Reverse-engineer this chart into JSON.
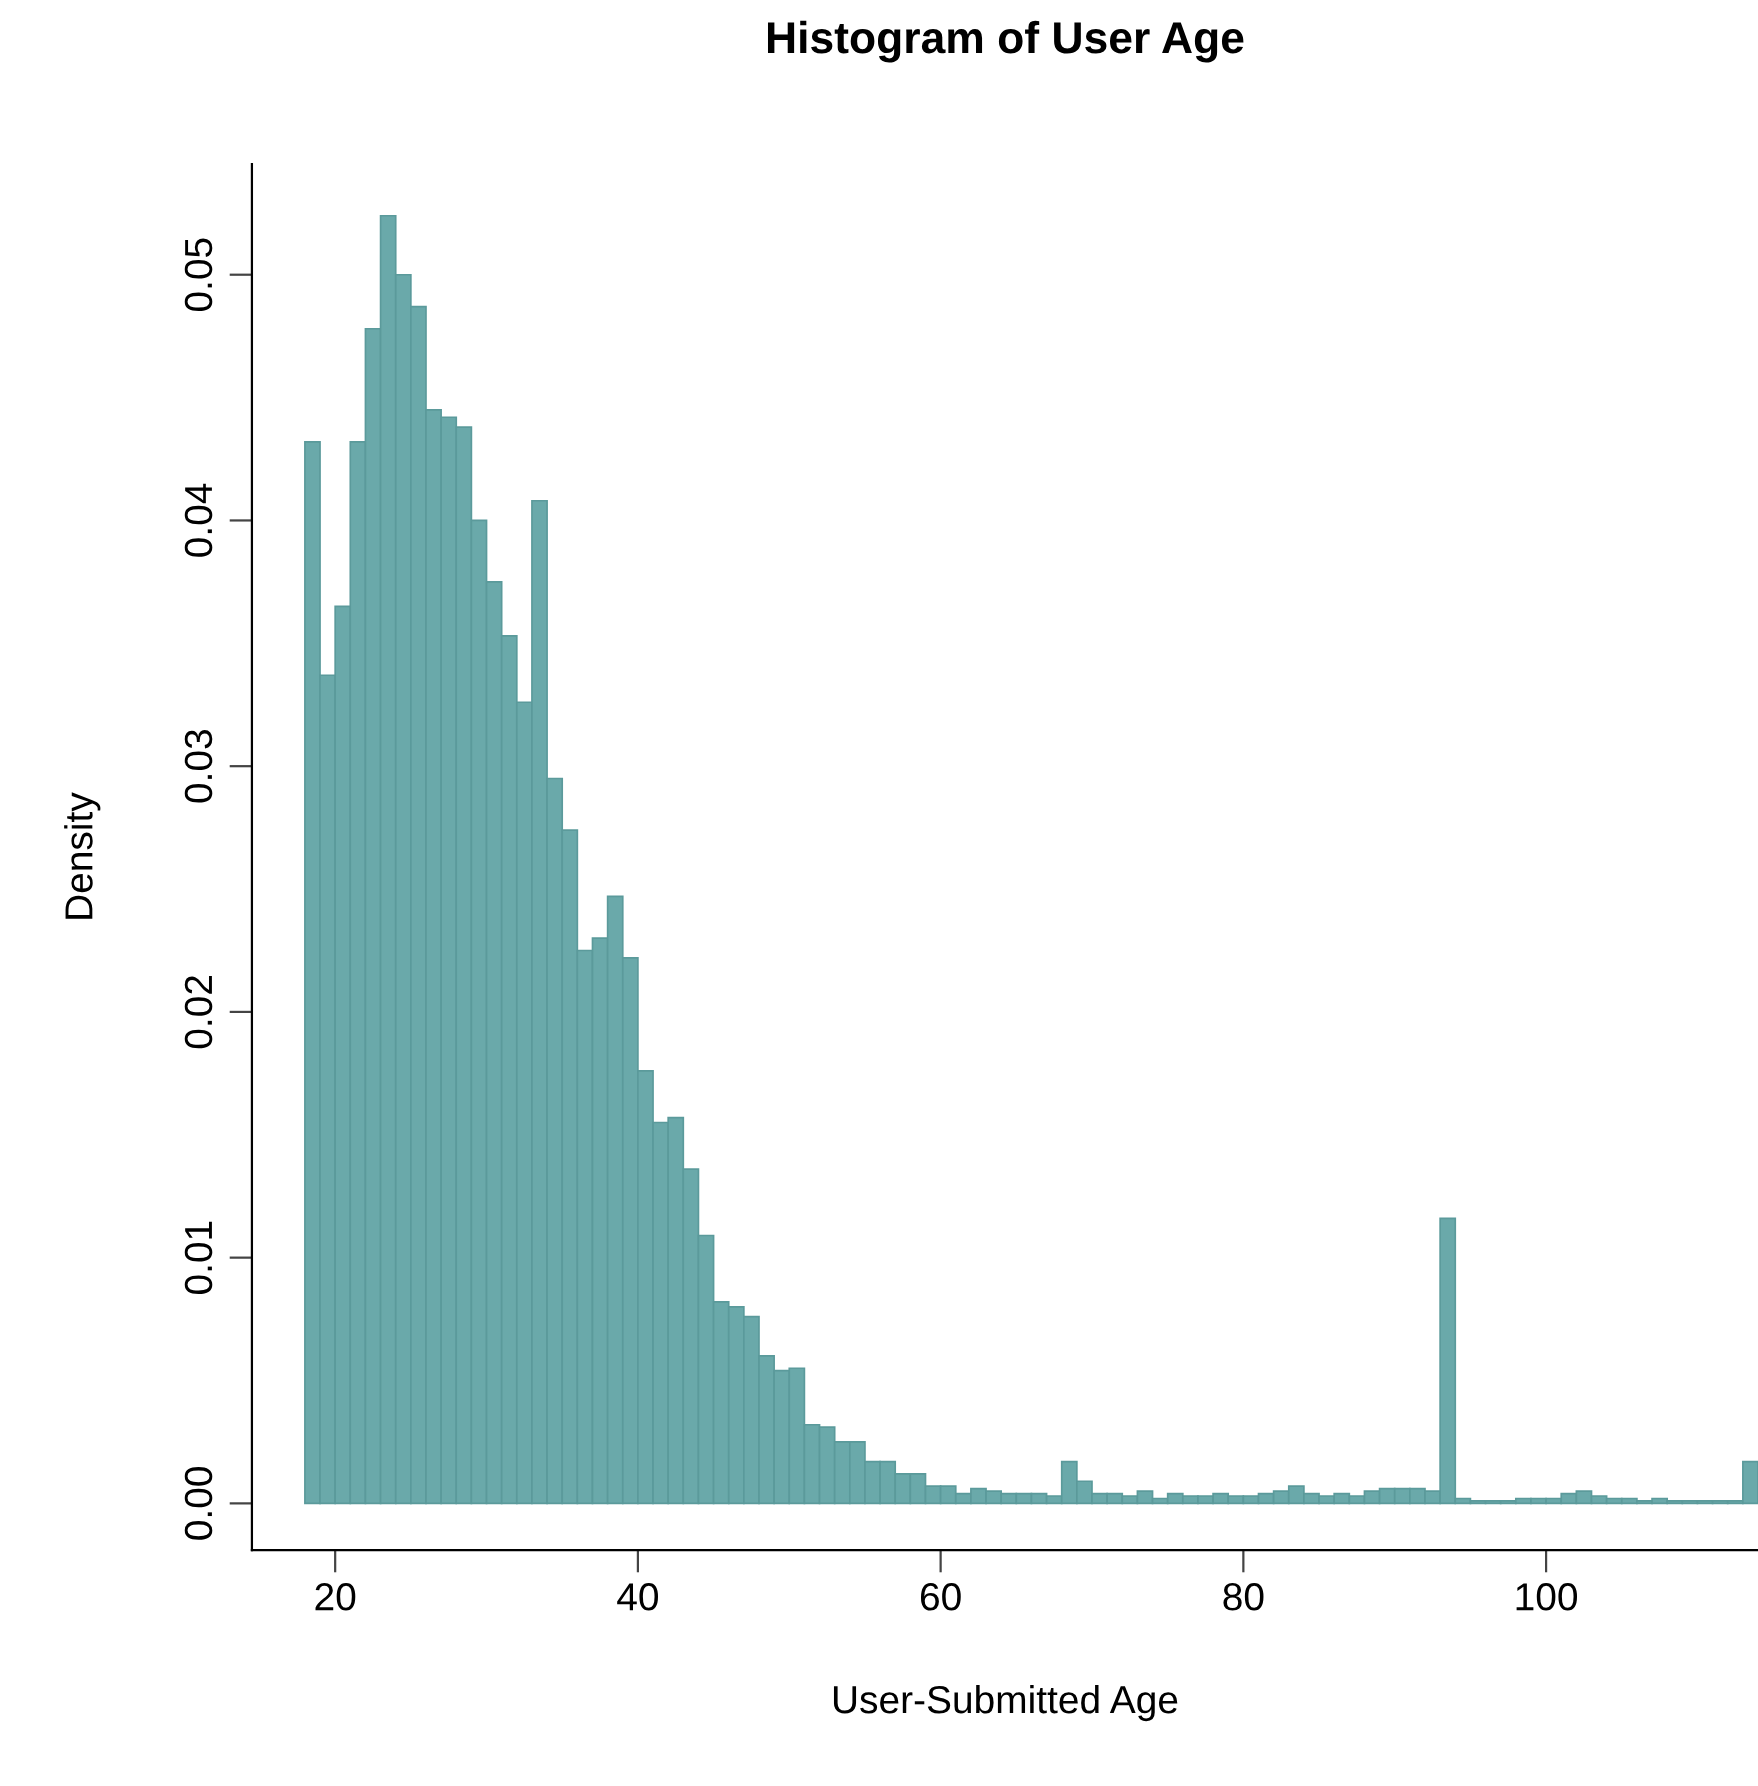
{
  "chart_data": {
    "type": "histogram",
    "title": "Histogram of User Age",
    "xlabel": "User-Submitted Age",
    "ylabel": "Density",
    "bins": [
      18,
      19,
      20,
      21,
      22,
      23,
      24,
      25,
      26,
      27,
      28,
      29,
      30,
      31,
      32,
      33,
      34,
      35,
      36,
      37,
      38,
      39,
      40,
      41,
      42,
      43,
      44,
      45,
      46,
      47,
      48,
      49,
      50,
      51,
      52,
      53,
      54,
      55,
      56,
      57,
      58,
      59,
      60,
      61,
      62,
      63,
      64,
      65,
      66,
      67,
      68,
      69,
      70,
      71,
      72,
      73,
      74,
      75,
      76,
      77,
      78,
      79,
      80,
      81,
      82,
      83,
      84,
      85,
      86,
      87,
      88,
      89,
      90,
      91,
      92,
      93,
      94,
      95,
      96,
      97,
      98,
      99,
      100,
      101,
      102,
      103,
      104,
      105,
      106,
      107,
      108,
      109,
      110,
      111,
      112,
      113,
      114
    ],
    "values": [
      0.0432,
      0.0337,
      0.0365,
      0.0432,
      0.0478,
      0.0524,
      0.05,
      0.0487,
      0.0445,
      0.0442,
      0.0438,
      0.04,
      0.0375,
      0.0353,
      0.0326,
      0.0408,
      0.0295,
      0.0274,
      0.0225,
      0.023,
      0.0247,
      0.0222,
      0.0176,
      0.0155,
      0.0157,
      0.0136,
      0.0109,
      0.0082,
      0.008,
      0.0076,
      0.006,
      0.0054,
      0.0055,
      0.0032,
      0.0031,
      0.0025,
      0.0025,
      0.0017,
      0.0017,
      0.0012,
      0.0012,
      0.0007,
      0.0007,
      0.0004,
      0.0006,
      0.0005,
      0.0004,
      0.0004,
      0.0004,
      0.0003,
      0.0017,
      0.0009,
      0.0004,
      0.0004,
      0.0003,
      0.0005,
      0.0002,
      0.0004,
      0.0003,
      0.0003,
      0.0004,
      0.0003,
      0.0003,
      0.0004,
      0.0005,
      0.0007,
      0.0004,
      0.0003,
      0.0004,
      0.0003,
      0.0005,
      0.0006,
      0.0006,
      0.0006,
      0.0005,
      0.0116,
      0.0002,
      0.0001,
      0.0001,
      0.0001,
      0.0002,
      0.0002,
      0.0002,
      0.0004,
      0.0005,
      0.0003,
      0.0002,
      0.0002,
      0.0001,
      0.0002,
      0.0001,
      0.0001,
      0.0001,
      0.0001,
      0.0001,
      0.0017
    ],
    "color": "#6aa9aa",
    "xlim": [
      14.5,
      114
    ],
    "xticks": [
      20,
      40,
      60,
      80,
      100
    ],
    "ylim": [
      -0.0019,
      0.0545
    ],
    "yticks": [
      {
        "value": 0,
        "label": "0.00"
      },
      0.01,
      0.02,
      0.03,
      0.04,
      0.05
    ],
    "grid": false
  }
}
